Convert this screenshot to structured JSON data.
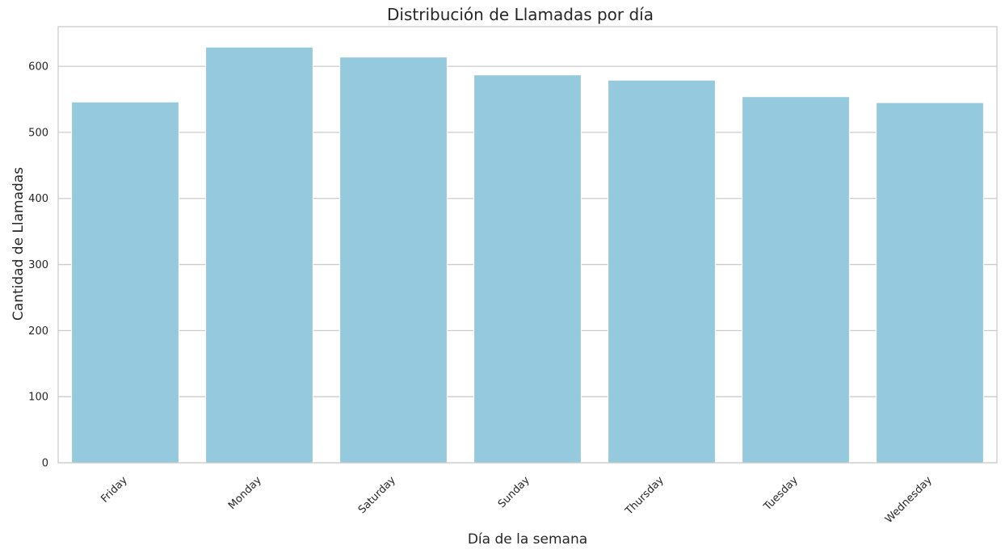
{
  "chart_data": {
    "type": "bar",
    "title": "Distribución de Llamadas por día",
    "xlabel": "Día de la semana",
    "ylabel": "Cantidad de Llamadas",
    "categories": [
      "Friday",
      "Monday",
      "Saturday",
      "Sunday",
      "Thursday",
      "Tuesday",
      "Wednesday"
    ],
    "values": [
      546,
      629,
      614,
      587,
      579,
      554,
      545
    ],
    "ylim": [
      0,
      660
    ],
    "yticks": [
      0,
      100,
      200,
      300,
      400,
      500,
      600
    ],
    "grid": true,
    "grid_axis": "y",
    "bar_color": "#95c9de",
    "grid_color": "#cccccc",
    "spine_color": "#cccccc",
    "x_tick_rotation": 45
  }
}
